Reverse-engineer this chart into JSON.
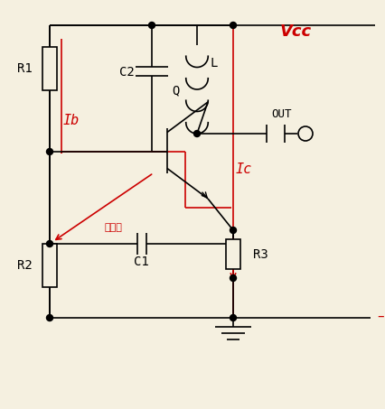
{
  "bg_color": "#f5f0e0",
  "line_color": "#000000",
  "red_color": "#cc0000",
  "title_text": "Vcc",
  "label_Ib": "Ib",
  "label_Ic": "Ic",
  "label_R1": "R1",
  "label_R2": "R2",
  "label_R3": "R3",
  "label_C1": "C1",
  "label_C2": "C2",
  "label_L": "L",
  "label_Q": "Q",
  "label_OUT": "OUT",
  "label_feedback": "正反馈",
  "figsize": [
    4.26,
    4.53
  ],
  "dpi": 100
}
